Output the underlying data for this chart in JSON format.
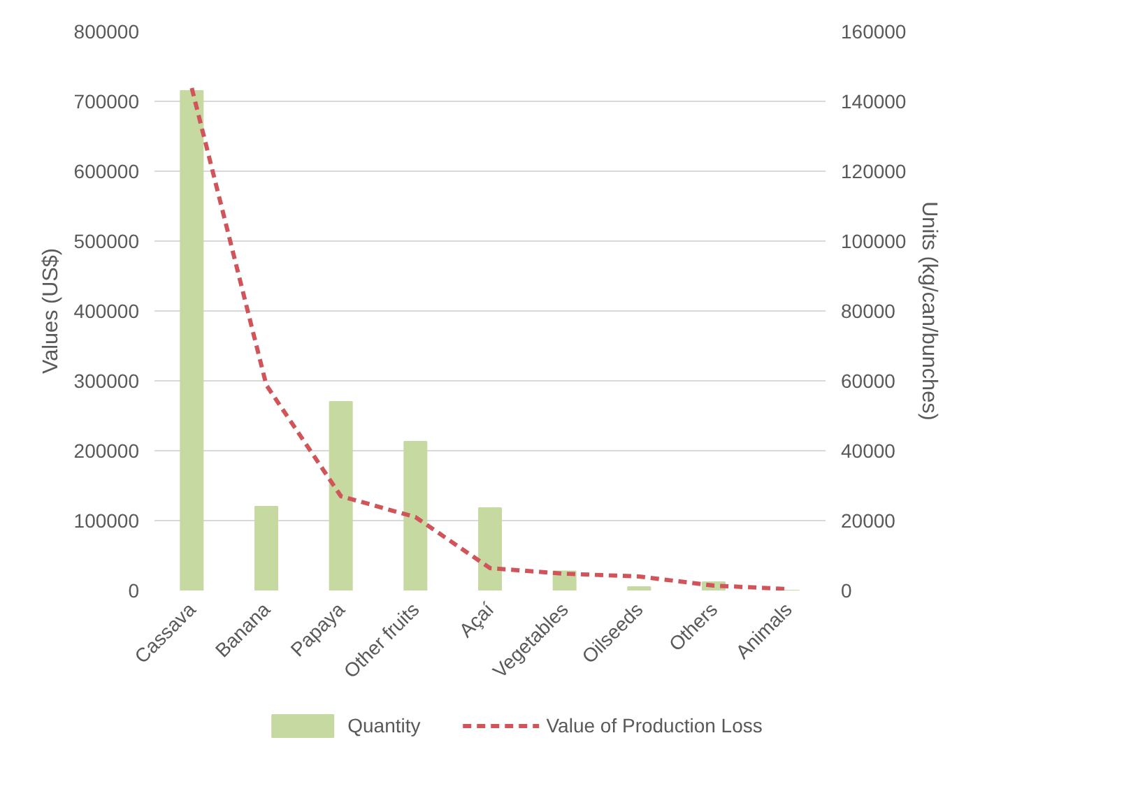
{
  "chart_data": {
    "type": "bar",
    "ylabel": "Values (US$)",
    "y2label": "Units (kg/can/bunches)",
    "categories": [
      "Cassava",
      "Banana",
      "Papaya",
      "Other fruits",
      "Açaí",
      "Vegetables",
      "Oilseeds",
      "Others",
      "Animals"
    ],
    "series": [
      {
        "name": "Quantity",
        "axis": "y2",
        "color": "#c5d9a0",
        "values": [
          143000,
          24000,
          54000,
          42600,
          23600,
          5500,
          1000,
          2400,
          0
        ]
      },
      {
        "name": "Value of Production Loss",
        "type": "line",
        "line_style": "dashed",
        "color": "#d0545a",
        "values": [
          719000,
          294000,
          135000,
          105000,
          32000,
          24000,
          20000,
          7000,
          2000
        ]
      }
    ],
    "ylim": [
      0,
      800000
    ],
    "yticks": [
      0,
      100000,
      200000,
      300000,
      400000,
      500000,
      600000,
      700000,
      800000
    ],
    "y2lim": [
      0,
      160000
    ],
    "y2ticks": [
      0,
      20000,
      40000,
      60000,
      80000,
      100000,
      120000,
      140000,
      160000
    ],
    "grid": "y",
    "legend": "bottom"
  }
}
